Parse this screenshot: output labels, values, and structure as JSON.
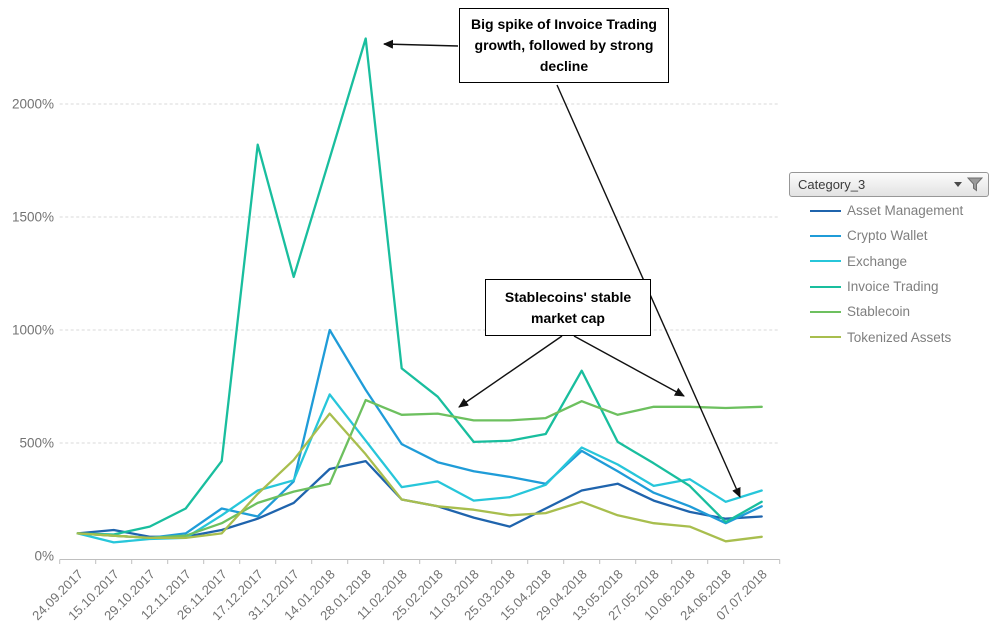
{
  "chart_data": {
    "type": "line",
    "title": "",
    "xlabel": "",
    "ylabel": "",
    "grid": "horizontal-dashed",
    "legend_position": "right",
    "ylim": [
      0,
      2400
    ],
    "y_ticks": [
      {
        "value": 0,
        "label": "0%"
      },
      {
        "value": 500,
        "label": "500%"
      },
      {
        "value": 1000,
        "label": "1000%"
      },
      {
        "value": 1500,
        "label": "1500%"
      },
      {
        "value": 2000,
        "label": "2000%"
      }
    ],
    "x_labels": [
      "24.09.2017",
      "15.10.2017",
      "29.10.2017",
      "12.11.2017",
      "26.11.2017",
      "17.12.2017",
      "31.12.2017",
      "14.01.2018",
      "28.01.2018",
      "11.02.2018",
      "25.02.2018",
      "11.03.2018",
      "25.03.2018",
      "15.04.2018",
      "29.04.2018",
      "13.05.2018",
      "27.05.2018",
      "10.06.2018",
      "24.06.2018",
      "07.07.2018"
    ],
    "series": [
      {
        "name": "Asset Management",
        "color": "#1F64AD",
        "values": [
          100,
          115,
          85,
          85,
          115,
          165,
          235,
          385,
          420,
          250,
          220,
          170,
          130,
          210,
          290,
          320,
          245,
          195,
          165,
          175
        ]
      },
      {
        "name": "Crypto Wallet",
        "color": "#1F9CD8",
        "values": [
          100,
          90,
          80,
          100,
          210,
          175,
          330,
          1000,
          735,
          495,
          415,
          375,
          350,
          320,
          465,
          375,
          280,
          220,
          145,
          220
        ]
      },
      {
        "name": "Exchange",
        "color": "#27C6DA",
        "values": [
          100,
          60,
          75,
          80,
          180,
          290,
          335,
          715,
          510,
          305,
          330,
          245,
          260,
          315,
          480,
          405,
          310,
          340,
          240,
          290
        ]
      },
      {
        "name": "Invoice Trading",
        "color": "#19BE9E",
        "values": [
          100,
          95,
          130,
          210,
          420,
          1820,
          1235,
          1760,
          2290,
          830,
          705,
          505,
          510,
          540,
          820,
          505,
          410,
          310,
          150,
          240
        ]
      },
      {
        "name": "Stablecoin",
        "color": "#6DC05F",
        "values": [
          100,
          90,
          80,
          90,
          145,
          235,
          285,
          320,
          690,
          625,
          630,
          600,
          600,
          610,
          685,
          625,
          660,
          660,
          655,
          660
        ]
      },
      {
        "name": "Tokenized Assets",
        "color": "#A8BE4E",
        "values": [
          100,
          90,
          80,
          80,
          100,
          275,
          425,
          630,
          450,
          250,
          220,
          205,
          180,
          190,
          240,
          180,
          145,
          130,
          65,
          85
        ]
      }
    ],
    "colors": {
      "gridline": "#D9D9D9",
      "axis": "#BFBFBF",
      "tick_label": "#737373",
      "annotation": "#000000"
    }
  },
  "legend": {
    "filter_label": "Category_3",
    "filter_icons": [
      "dropdown-caret",
      "filter-funnel"
    ]
  },
  "annotations": {
    "spike": {
      "text": "Big spike of Invoice Trading growth, followed by strong decline"
    },
    "stable": {
      "text": "Stablecoins' stable market cap"
    }
  }
}
